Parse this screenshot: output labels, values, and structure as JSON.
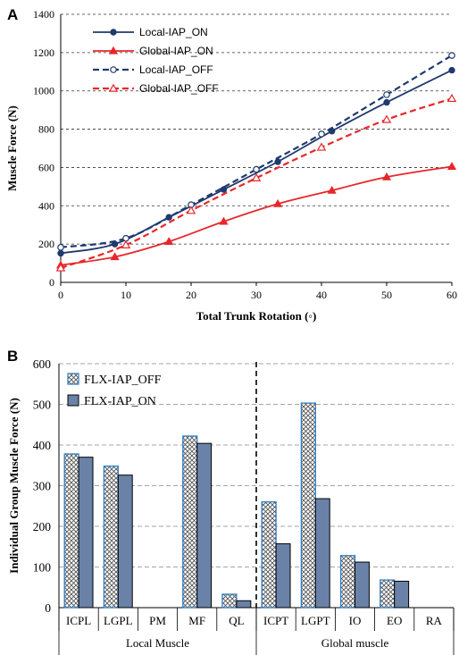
{
  "chart_data": [
    {
      "panel": "A",
      "type": "line",
      "xlabel": "Total Trunk Rotation (◦)",
      "ylabel": "Muscle Force (N)",
      "xlim": [
        0,
        60
      ],
      "ylim": [
        0,
        1400
      ],
      "xticks": [
        0,
        10,
        20,
        30,
        40,
        50,
        60
      ],
      "yticks": [
        0,
        200,
        400,
        600,
        800,
        1000,
        1200,
        1400
      ],
      "grid": "horizontal dashed",
      "legend_position": "top-left",
      "series": [
        {
          "name": "Local-IAP_ON",
          "color": "#1f3a6e",
          "dash": false,
          "marker": "filled-circle",
          "x": [
            0,
            8.3,
            16.6,
            25,
            33.3,
            41.6,
            50,
            60
          ],
          "y": [
            152,
            200,
            340,
            485,
            630,
            790,
            940,
            1108
          ]
        },
        {
          "name": "Global-IAP_ON",
          "color": "#e8262a",
          "dash": false,
          "marker": "filled-triangle",
          "x": [
            0,
            8.3,
            16.6,
            25,
            33.3,
            41.6,
            50,
            60
          ],
          "y": [
            90,
            133,
            213,
            318,
            410,
            480,
            550,
            605
          ]
        },
        {
          "name": "Local-IAP_OFF",
          "color": "#1f3a6e",
          "dash": true,
          "marker": "open-circle",
          "x": [
            0,
            10,
            20,
            30,
            40,
            50,
            60
          ],
          "y": [
            183,
            230,
            405,
            590,
            775,
            980,
            1185
          ]
        },
        {
          "name": "Global-IAP_OFF",
          "color": "#e8262a",
          "dash": true,
          "marker": "open-triangle",
          "x": [
            0,
            10,
            20,
            30,
            40,
            50,
            60
          ],
          "y": [
            75,
            195,
            375,
            545,
            705,
            850,
            960
          ]
        }
      ]
    },
    {
      "panel": "B",
      "type": "bar",
      "ylabel": "Individual Group Muscle Force (N)",
      "ylim": [
        0,
        600
      ],
      "yticks": [
        0,
        100,
        200,
        300,
        400,
        500,
        600
      ],
      "grid": "horizontal dashed",
      "legend_position": "top-left",
      "categories": [
        "ICPL",
        "LGPL",
        "PM",
        "MF",
        "QL",
        "ICPT",
        "LGPT",
        "IO",
        "EO",
        "RA"
      ],
      "groups": [
        {
          "label": "Local Muscle",
          "categories": [
            "ICPL",
            "LGPL",
            "PM",
            "MF",
            "QL"
          ]
        },
        {
          "label": "Global muscle",
          "categories": [
            "ICPT",
            "LGPT",
            "IO",
            "EO",
            "RA"
          ]
        }
      ],
      "series": [
        {
          "name": "FLX-IAP_OFF",
          "pattern": "crosshatch",
          "edge_color": "#2b7bc4",
          "values": [
            378,
            348,
            0,
            422,
            33,
            260,
            503,
            128,
            68,
            0
          ]
        },
        {
          "name": "FLX-IAP_ON",
          "color": "#6a82a8",
          "values": [
            370,
            326,
            0,
            404,
            17,
            157,
            268,
            112,
            65,
            0
          ]
        }
      ]
    }
  ]
}
